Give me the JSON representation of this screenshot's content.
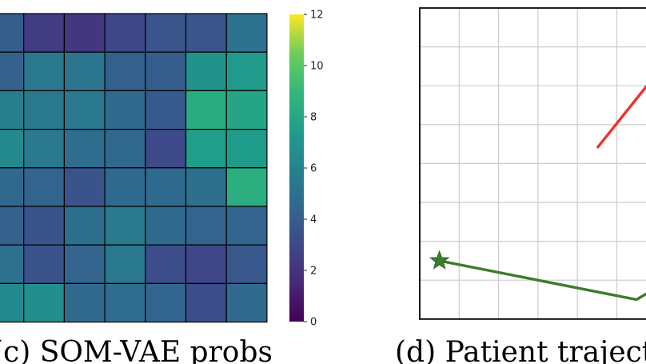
{
  "chart_data": [
    {
      "type": "heatmap",
      "title": "",
      "visible_columns": 7,
      "visible_rows": 8,
      "values": [
        [
          4.0,
          2.4,
          2.2,
          2.9,
          3.6,
          3.6,
          5.1
        ],
        [
          4.2,
          5.4,
          5.3,
          4.1,
          4.0,
          6.9,
          7.3
        ],
        [
          5.8,
          5.4,
          5.4,
          4.7,
          3.8,
          8.3,
          7.9
        ],
        [
          6.4,
          5.5,
          4.8,
          4.5,
          3.0,
          7.5,
          7.4
        ],
        [
          4.5,
          4.3,
          3.5,
          4.6,
          4.6,
          4.9,
          8.4
        ],
        [
          4.2,
          3.5,
          4.9,
          5.5,
          4.6,
          4.3,
          4.3
        ],
        [
          5.0,
          3.5,
          4.3,
          5.4,
          3.2,
          2.9,
          3.7
        ],
        [
          6.4,
          6.7,
          4.6,
          4.8,
          4.4,
          3.2,
          4.6
        ]
      ],
      "colorbar": {
        "vmin": 0,
        "vmax": 12,
        "colormap": "viridis",
        "ticks": [
          "0",
          "2",
          "4",
          "6",
          "8",
          "10",
          "12"
        ]
      },
      "caption": "(c) SOM-VAE probs"
    },
    {
      "type": "line",
      "title": "",
      "grid": true,
      "grid_columns": 6,
      "grid_rows": 8,
      "series": [
        {
          "color": "#e8352f",
          "points": [
            [
              4.5,
              4.4
            ],
            [
              6.0,
              6.3
            ]
          ]
        },
        {
          "color": "#3a7d2a",
          "points": [
            [
              0.5,
              1.5
            ],
            [
              5.5,
              0.5
            ],
            [
              6.0,
              0.8
            ]
          ]
        }
      ],
      "start_marker": "star",
      "caption": "(d) Patient trajectory"
    }
  ]
}
